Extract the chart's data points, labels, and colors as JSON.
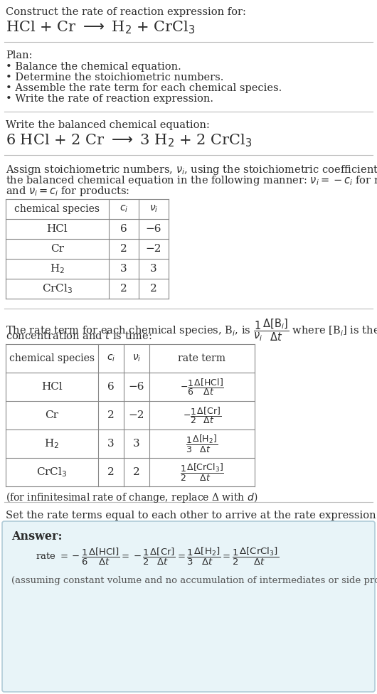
{
  "bg_color": "#ffffff",
  "text_color": "#2c2c2c",
  "light_blue_bg": "#e8f4f8",
  "border_color": "#b0ccd8",
  "section1_title": "Construct the rate of reaction expression for:",
  "section2_title": "Plan:",
  "section2_bullets": [
    "• Balance the chemical equation.",
    "• Determine the stoichiometric numbers.",
    "• Assemble the rate term for each chemical species.",
    "• Write the rate of reaction expression."
  ],
  "section3_title": "Write the balanced chemical equation:",
  "section4_intro_line1": "Assign stoichiometric numbers, $\\nu_i$, using the stoichiometric coefficients, $c_i$, from",
  "section4_intro_line2": "the balanced chemical equation in the following manner: $\\nu_i = -c_i$ for reactants",
  "section4_intro_line3": "and $\\nu_i = c_i$ for products:",
  "table1_headers": [
    "chemical species",
    "$c_i$",
    "$\\nu_i$"
  ],
  "table1_rows": [
    [
      "HCl",
      "6",
      "−6"
    ],
    [
      "Cr",
      "2",
      "−2"
    ],
    [
      "H$_2$",
      "3",
      "3"
    ],
    [
      "CrCl$_3$",
      "2",
      "2"
    ]
  ],
  "section5_intro_line1": "The rate term for each chemical species, B$_i$, is $\\dfrac{1}{\\nu_i}\\dfrac{\\Delta[\\mathrm{B}_i]}{\\Delta t}$ where [B$_i$] is the amount",
  "section5_intro_line2": "concentration and $t$ is time:",
  "table2_headers": [
    "chemical species",
    "$c_i$",
    "$\\nu_i$",
    "rate term"
  ],
  "table2_rows": [
    [
      "HCl",
      "6",
      "−6",
      "$-\\dfrac{1}{6}\\dfrac{\\Delta[\\mathrm{HCl}]}{\\Delta t}$"
    ],
    [
      "Cr",
      "2",
      "−2",
      "$-\\dfrac{1}{2}\\dfrac{\\Delta[\\mathrm{Cr}]}{\\Delta t}$"
    ],
    [
      "H$_2$",
      "3",
      "3",
      "$\\dfrac{1}{3}\\dfrac{\\Delta[\\mathrm{H_2}]}{\\Delta t}$"
    ],
    [
      "CrCl$_3$",
      "2",
      "2",
      "$\\dfrac{1}{2}\\dfrac{\\Delta[\\mathrm{CrCl_3}]}{\\Delta t}$"
    ]
  ],
  "section5_note": "(for infinitesimal rate of change, replace Δ with $d$)",
  "section6_intro": "Set the rate terms equal to each other to arrive at the rate expression:",
  "answer_label": "Answer:",
  "answer_note": "(assuming constant volume and no accumulation of intermediates or side products)"
}
